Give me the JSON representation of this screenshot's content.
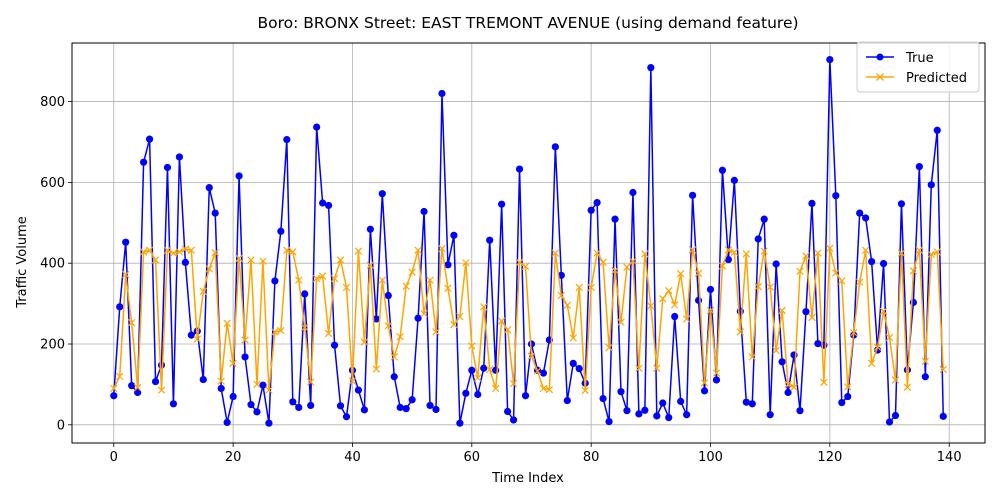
{
  "chart_data": {
    "type": "line",
    "title": "Boro: BRONX Street: EAST TREMONT AVENUE (using demand feature)",
    "xlabel": "Time Index",
    "ylabel": "Traffic Volume",
    "xlim": [
      -7,
      146
    ],
    "ylim": [
      -45,
      945
    ],
    "x_ticks": [
      "0",
      "20",
      "40",
      "60",
      "80",
      "100",
      "120",
      "140"
    ],
    "y_ticks": [
      "0",
      "200",
      "400",
      "600",
      "800"
    ],
    "grid": true,
    "legend_position": "top-right",
    "colors": {
      "true": "#0000ff",
      "predicted": "#ffa500"
    },
    "series": [
      {
        "name": "True",
        "marker": "circle",
        "values": [
          72,
          292,
          452,
          97,
          80,
          650,
          707,
          107,
          148,
          637,
          52,
          663,
          402,
          222,
          232,
          112,
          587,
          524,
          90,
          6,
          70,
          616,
          168,
          50,
          32,
          98,
          4,
          356,
          479,
          706,
          57,
          43,
          324,
          48,
          737,
          549,
          543,
          197,
          47,
          20,
          135,
          86,
          37,
          484,
          262,
          572,
          320,
          119,
          43,
          40,
          62,
          264,
          528,
          48,
          38,
          820,
          396,
          469,
          4,
          78,
          135,
          75,
          140,
          457,
          135,
          546,
          33,
          12,
          633,
          72,
          200,
          135,
          128,
          210,
          688,
          370,
          60,
          152,
          139,
          103,
          531,
          550,
          65,
          8,
          509,
          82,
          35,
          575,
          27,
          36,
          884,
          22,
          54,
          18,
          268,
          58,
          25,
          568,
          308,
          84,
          335,
          111,
          630,
          409,
          605,
          281,
          56,
          52,
          460,
          509,
          25,
          398,
          156,
          80,
          173,
          35,
          280,
          548,
          201,
          197,
          904,
          567,
          55,
          70,
          222,
          524,
          512,
          404,
          185,
          399,
          7,
          23,
          547,
          136,
          303,
          639,
          119,
          594,
          729,
          21
        ]
      },
      {
        "name": "Predicted",
        "marker": "x",
        "values": [
          90,
          120,
          372,
          253,
          92,
          428,
          432,
          408,
          86,
          432,
          425,
          428,
          435,
          432,
          212,
          330,
          386,
          426,
          108,
          251,
          152,
          412,
          210,
          408,
          100,
          405,
          86,
          230,
          233,
          432,
          428,
          358,
          241,
          106,
          362,
          368,
          226,
          362,
          408,
          340,
          108,
          430,
          205,
          395,
          138,
          358,
          245,
          168,
          218,
          343,
          378,
          432,
          275,
          358,
          230,
          436,
          338,
          248,
          268,
          401,
          195,
          116,
          292,
          137,
          90,
          257,
          235,
          102,
          402,
          392,
          170,
          133,
          90,
          87,
          425,
          320,
          296,
          215,
          340,
          85,
          340,
          425,
          402,
          191,
          382,
          254,
          390,
          405,
          140,
          423,
          294,
          140,
          312,
          332,
          297,
          374,
          262,
          433,
          375,
          104,
          283,
          128,
          393,
          433,
          427,
          230,
          423,
          168,
          342,
          430,
          341,
          184,
          283,
          100,
          93,
          380,
          418,
          266,
          425,
          105,
          437,
          376,
          356,
          94,
          228,
          353,
          432,
          152,
          192,
          281,
          216,
          111,
          425,
          93,
          381,
          432,
          157,
          422,
          428,
          137
        ]
      }
    ]
  }
}
